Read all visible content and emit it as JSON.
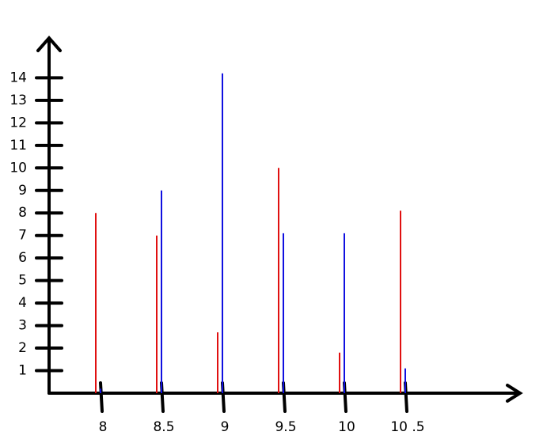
{
  "chart_data": {
    "type": "bar",
    "categories": [
      "8",
      "8.5",
      "9",
      "9.5",
      "10",
      "10 .5"
    ],
    "series": [
      {
        "color": "#e01010",
        "values": [
          8,
          7,
          2.7,
          10,
          1.8,
          8.1
        ]
      },
      {
        "color": "#1010e0",
        "values": [
          0.2,
          9,
          14.2,
          7.1,
          7.1,
          1.1
        ]
      }
    ],
    "ylim": [
      0,
      15.7
    ],
    "yticks": [
      1,
      2,
      3,
      4,
      5,
      6,
      7,
      8,
      9,
      10,
      11,
      12,
      13,
      14
    ],
    "grid": false
  }
}
